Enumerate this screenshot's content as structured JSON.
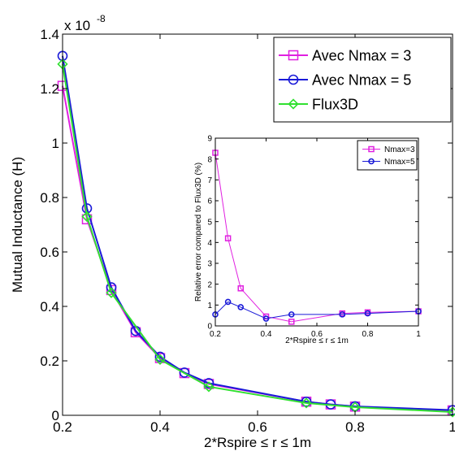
{
  "chart_data": [
    {
      "type": "line",
      "x_label": "2*Rspire ≤ r ≤ 1m",
      "y_label": "Mutual Inductance (H)",
      "y_multiplier_label": "x 10",
      "y_multiplier_exponent": "-8",
      "xlim": [
        0.2,
        1.0
      ],
      "ylim": [
        0,
        1.4
      ],
      "x_ticks": [
        0.2,
        0.4,
        0.6,
        0.8,
        1.0
      ],
      "x_tick_labels": [
        "0.2",
        "0.4",
        "0.6",
        "0.8",
        "1"
      ],
      "y_ticks": [
        0,
        0.2,
        0.4,
        0.6,
        0.8,
        1.0,
        1.2,
        1.4
      ],
      "y_tick_labels": [
        "0",
        "0.2",
        "0.4",
        "0.6",
        "0.8",
        "1",
        "1.2",
        "1.4"
      ],
      "grid": false,
      "legend_position": "top-right",
      "series": [
        {
          "name": "Avec Nmax = 3",
          "color": "#e020e0",
          "marker": "square",
          "x": [
            0.2,
            0.25,
            0.3,
            0.35,
            0.4,
            0.45,
            0.5,
            0.7,
            0.75,
            0.8,
            1.0
          ],
          "y": [
            1.21,
            0.72,
            0.46,
            0.305,
            0.21,
            0.155,
            0.115,
            0.05,
            0.04,
            0.032,
            0.018
          ]
        },
        {
          "name": "Avec Nmax = 5",
          "color": "#1a1ad8",
          "marker": "circle",
          "x": [
            0.2,
            0.25,
            0.3,
            0.35,
            0.4,
            0.45,
            0.5,
            0.7,
            0.75,
            0.8,
            1.0
          ],
          "y": [
            1.32,
            0.76,
            0.47,
            0.31,
            0.215,
            0.157,
            0.118,
            0.05,
            0.04,
            0.033,
            0.019
          ]
        },
        {
          "name": "Flux3D",
          "color": "#30e030",
          "marker": "diamond",
          "x": [
            0.2,
            0.25,
            0.3,
            0.4,
            0.5,
            0.7,
            0.8,
            1.0
          ],
          "y": [
            1.29,
            0.73,
            0.45,
            0.205,
            0.105,
            0.045,
            0.03,
            0.012
          ]
        }
      ]
    },
    {
      "type": "line",
      "x_label": "2*Rspire ≤ r ≤ 1m",
      "y_label": "Relative error compared to Flux3D (%)",
      "xlim": [
        0.2,
        1.0
      ],
      "ylim": [
        0,
        9
      ],
      "x_ticks": [
        0.2,
        0.4,
        0.6,
        0.8,
        1.0
      ],
      "x_tick_labels": [
        "0.2",
        "0.4",
        "0.6",
        "0.8",
        "1"
      ],
      "y_ticks": [
        0,
        1,
        2,
        3,
        4,
        5,
        6,
        7,
        8,
        9
      ],
      "y_tick_labels": [
        "0",
        "1",
        "2",
        "3",
        "4",
        "5",
        "6",
        "7",
        "8",
        "9"
      ],
      "grid": false,
      "legend_position": "top-right",
      "series": [
        {
          "name": "Nmax=3",
          "color": "#e020e0",
          "marker": "square",
          "x": [
            0.2,
            0.25,
            0.3,
            0.4,
            0.5,
            0.7,
            0.8,
            1.0
          ],
          "y": [
            8.3,
            4.2,
            1.8,
            0.45,
            0.2,
            0.6,
            0.65,
            0.7
          ]
        },
        {
          "name": "Nmax=5",
          "color": "#1a1ad8",
          "marker": "circle",
          "x": [
            0.2,
            0.25,
            0.3,
            0.4,
            0.5,
            0.7,
            0.8,
            1.0
          ],
          "y": [
            0.55,
            1.15,
            0.9,
            0.35,
            0.55,
            0.55,
            0.6,
            0.7
          ]
        }
      ]
    }
  ]
}
